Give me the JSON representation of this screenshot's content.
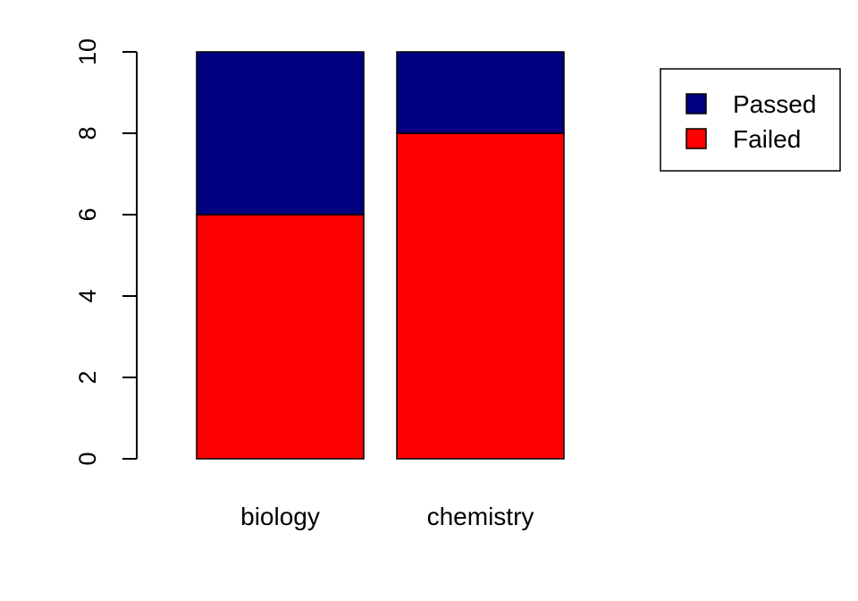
{
  "chart_data": {
    "type": "bar",
    "stacked": true,
    "categories": [
      "biology",
      "chemistry"
    ],
    "series": [
      {
        "name": "Failed",
        "values": [
          6,
          8
        ],
        "color": "#FF0000"
      },
      {
        "name": "Passed",
        "values": [
          4,
          2
        ],
        "color": "#000080"
      }
    ],
    "ylim": [
      0,
      10
    ],
    "yticks": [
      0,
      2,
      4,
      6,
      8,
      10
    ],
    "title": "",
    "xlabel": "",
    "ylabel": "",
    "legend": {
      "placement": "top-right",
      "entries": [
        "Passed",
        "Failed"
      ]
    },
    "grid": false
  }
}
